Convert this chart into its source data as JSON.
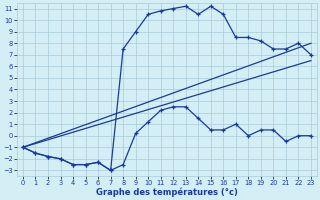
{
  "xlabel": "Graphe des températures (°c)",
  "xlim": [
    -0.5,
    23.5
  ],
  "ylim": [
    -3.5,
    11.5
  ],
  "xticks": [
    0,
    1,
    2,
    3,
    4,
    5,
    6,
    7,
    8,
    9,
    10,
    11,
    12,
    13,
    14,
    15,
    16,
    17,
    18,
    19,
    20,
    21,
    22,
    23
  ],
  "yticks": [
    -3,
    -2,
    -1,
    0,
    1,
    2,
    3,
    4,
    5,
    6,
    7,
    8,
    9,
    10,
    11
  ],
  "bg_color": "#d4eef5",
  "line_color": "#1a3a9e",
  "grid_color": "#a8ccd8",
  "line1_x": [
    0,
    23
  ],
  "line1_y": [
    -1.0,
    8.0
  ],
  "line2_x": [
    0,
    23
  ],
  "line2_y": [
    -1.0,
    6.5
  ],
  "main_x": [
    0,
    1,
    2,
    3,
    4,
    5,
    6,
    7,
    8,
    9,
    10,
    11,
    12,
    13,
    14,
    15,
    16,
    17,
    18,
    19,
    20,
    21,
    22,
    23
  ],
  "main_y": [
    -1.0,
    -1.5,
    -1.8,
    -2.0,
    -2.5,
    -2.5,
    -2.3,
    -3.0,
    7.5,
    9.0,
    10.5,
    10.8,
    11.0,
    11.2,
    10.5,
    11.2,
    10.5,
    8.5,
    8.5,
    8.2,
    7.5,
    7.5,
    8.0,
    7.0
  ],
  "low_x": [
    0,
    1,
    2,
    3,
    4,
    5,
    6,
    7,
    8,
    9,
    10,
    11,
    12,
    13,
    14,
    15,
    16,
    17,
    18,
    19,
    20,
    21,
    22,
    23
  ],
  "low_y": [
    -1.0,
    -1.5,
    -1.8,
    -2.0,
    -2.5,
    -2.5,
    -2.3,
    -3.0,
    -2.5,
    0.2,
    1.2,
    2.2,
    2.5,
    2.5,
    1.5,
    0.5,
    0.5,
    1.0,
    0.0,
    0.5,
    0.5,
    -0.5,
    0.0,
    0.0
  ]
}
